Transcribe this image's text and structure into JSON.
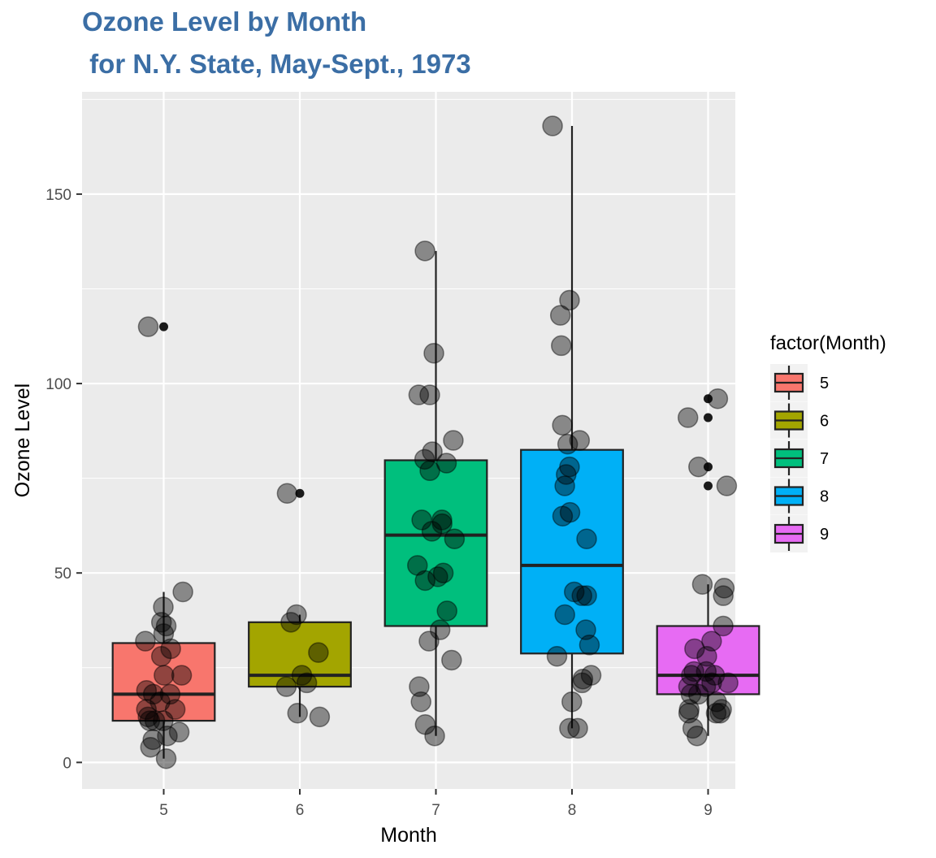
{
  "chart_data": {
    "type": "box",
    "title": "Ozone Level by Month",
    "subtitle": " for N.Y. State, May-Sept., 1973",
    "xlabel": "Month",
    "ylabel": "Ozone Level",
    "categories": [
      "5",
      "6",
      "7",
      "8",
      "9"
    ],
    "ylim": [
      -7,
      177
    ],
    "yticks": [
      0,
      50,
      100,
      150
    ],
    "grid": true,
    "legend": {
      "title": "factor(Month)",
      "placement": "right",
      "entries": [
        "5",
        "6",
        "7",
        "8",
        "9"
      ]
    },
    "colors": [
      "#F8766D",
      "#A3A500",
      "#00BF7D",
      "#00B0F6",
      "#E76BF3"
    ],
    "boxes": [
      {
        "month": "5",
        "q1": 11,
        "median": 18,
        "q3": 31.5,
        "whisker_low": 1,
        "whisker_high": 45,
        "outliers": [
          115
        ]
      },
      {
        "month": "6",
        "q1": 20,
        "median": 23,
        "q3": 37,
        "whisker_low": 12,
        "whisker_high": 39,
        "outliers": [
          71
        ]
      },
      {
        "month": "7",
        "q1": 36,
        "median": 60,
        "q3": 79.75,
        "whisker_low": 7,
        "whisker_high": 135,
        "outliers": []
      },
      {
        "month": "8",
        "q1": 28.75,
        "median": 52,
        "q3": 82.5,
        "whisker_low": 9,
        "whisker_high": 168,
        "outliers": []
      },
      {
        "month": "9",
        "q1": 18,
        "median": 23,
        "q3": 36,
        "whisker_low": 7,
        "whisker_high": 47,
        "outliers": [
          73,
          78,
          91,
          96
        ]
      }
    ],
    "points": [
      {
        "month": "5",
        "values": [
          41,
          36,
          12,
          18,
          28,
          23,
          19,
          8,
          7,
          16,
          11,
          14,
          18,
          14,
          34,
          6,
          30,
          11,
          1,
          11,
          4,
          32,
          23,
          45,
          115,
          37
        ]
      },
      {
        "month": "6",
        "values": [
          29,
          71,
          39,
          23,
          21,
          37,
          20,
          12,
          13
        ]
      },
      {
        "month": "7",
        "values": [
          135,
          49,
          32,
          64,
          40,
          77,
          97,
          97,
          85,
          10,
          27,
          7,
          48,
          35,
          61,
          79,
          63,
          16,
          80,
          108,
          20,
          52,
          82,
          50,
          64,
          59
        ]
      },
      {
        "month": "8",
        "values": [
          39,
          9,
          16,
          78,
          35,
          66,
          122,
          89,
          110,
          44,
          28,
          65,
          22,
          59,
          23,
          31,
          44,
          21,
          9,
          45,
          168,
          73,
          76,
          118,
          84,
          85
        ]
      },
      {
        "month": "9",
        "values": [
          96,
          78,
          73,
          91,
          47,
          32,
          20,
          23,
          21,
          24,
          44,
          21,
          28,
          9,
          13,
          46,
          18,
          13,
          24,
          16,
          13,
          23,
          36,
          7,
          14,
          30,
          14,
          18,
          20
        ]
      }
    ]
  }
}
